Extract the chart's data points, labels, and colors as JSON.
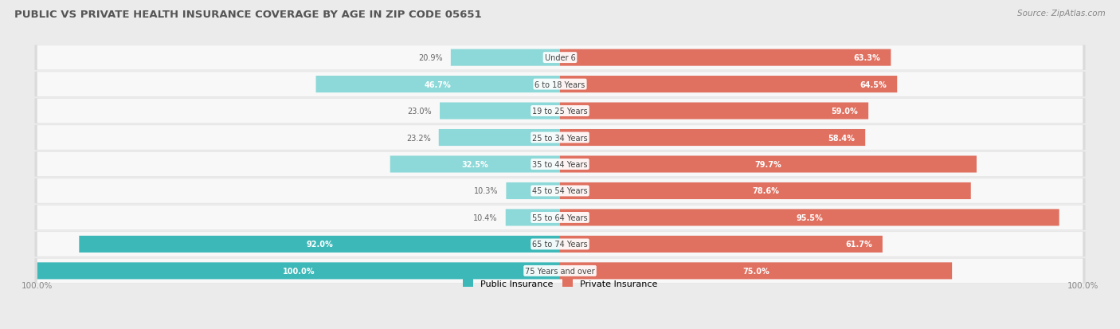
{
  "title": "PUBLIC VS PRIVATE HEALTH INSURANCE COVERAGE BY AGE IN ZIP CODE 05651",
  "source": "Source: ZipAtlas.com",
  "categories": [
    "Under 6",
    "6 to 18 Years",
    "19 to 25 Years",
    "25 to 34 Years",
    "35 to 44 Years",
    "45 to 54 Years",
    "55 to 64 Years",
    "65 to 74 Years",
    "75 Years and over"
  ],
  "public_values": [
    20.9,
    46.7,
    23.0,
    23.2,
    32.5,
    10.3,
    10.4,
    92.0,
    100.0
  ],
  "private_values": [
    63.3,
    64.5,
    59.0,
    58.4,
    79.7,
    78.6,
    95.5,
    61.7,
    75.0
  ],
  "public_color_high": "#3db8b8",
  "public_color_low": "#8dd8d8",
  "private_color_high": "#e07060",
  "private_color_low": "#f0a898",
  "bg_color": "#ebebeb",
  "bar_bg_color": "#f8f8f8",
  "title_color": "#555555",
  "legend_public": "Public Insurance",
  "legend_private": "Private Insurance",
  "max_val": 100.0,
  "threshold_high": 50.0
}
